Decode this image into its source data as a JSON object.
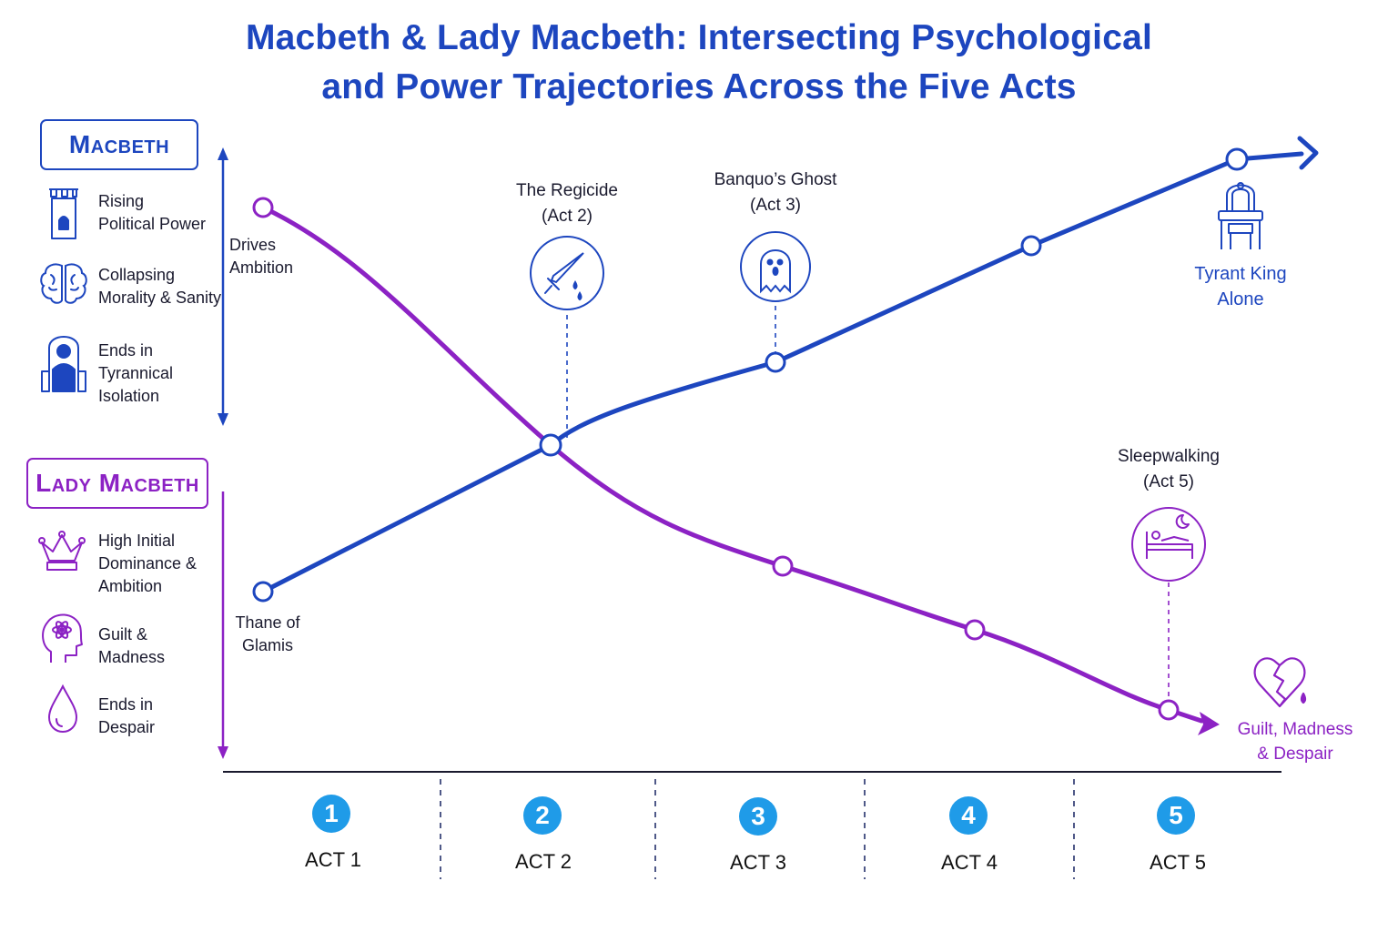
{
  "title": {
    "line1": "Macbeth & Lady Macbeth: Intersecting Psychological",
    "line2": "and Power Trajectories Across the Five Acts"
  },
  "colors": {
    "macbeth": "#1d46bf",
    "lady": "#8c22c4",
    "act_badge": "#1f9be8"
  },
  "legend": {
    "macbeth": {
      "name": "Macbeth",
      "items": [
        {
          "icon": "castle-tower-icon",
          "text": "Rising\nPolitical Power"
        },
        {
          "icon": "brain-icon",
          "text": "Collapsing\nMorality & Sanity"
        },
        {
          "icon": "throne-figure-icon",
          "text": "Ends in\nTyrannical\nIsolation"
        }
      ]
    },
    "lady": {
      "name": "Lady Macbeth",
      "items": [
        {
          "icon": "crown-icon",
          "text": "High Initial\nDominance &\nAmbition"
        },
        {
          "icon": "head-atom-icon",
          "text": "Guilt &\nMadness"
        },
        {
          "icon": "teardrop-icon",
          "text": "Ends in\nDespair"
        }
      ]
    }
  },
  "labels": {
    "macbeth_start": "Thane of\nGlamis",
    "macbeth_end": "Tyrant King\nAlone",
    "lady_start": "Drives\nAmbition",
    "lady_end": "Guilt, Madness\n& Despair"
  },
  "events": [
    {
      "icon": "dagger-icon",
      "label": "The Regicide\n(Act 2)",
      "track": "macbeth",
      "act": 2
    },
    {
      "icon": "ghost-icon",
      "label": "Banquo’s Ghost\n(Act 3)",
      "track": "macbeth",
      "act": 3
    },
    {
      "icon": "sleeping-bed-icon",
      "label": "Sleepwalking\n(Act 5)",
      "track": "lady",
      "act": 5
    }
  ],
  "acts": [
    {
      "number": "1",
      "label": "ACT 1"
    },
    {
      "number": "2",
      "label": "ACT 2"
    },
    {
      "number": "3",
      "label": "ACT 3"
    },
    {
      "number": "4",
      "label": "ACT 4"
    },
    {
      "number": "5",
      "label": "ACT 5"
    }
  ]
}
